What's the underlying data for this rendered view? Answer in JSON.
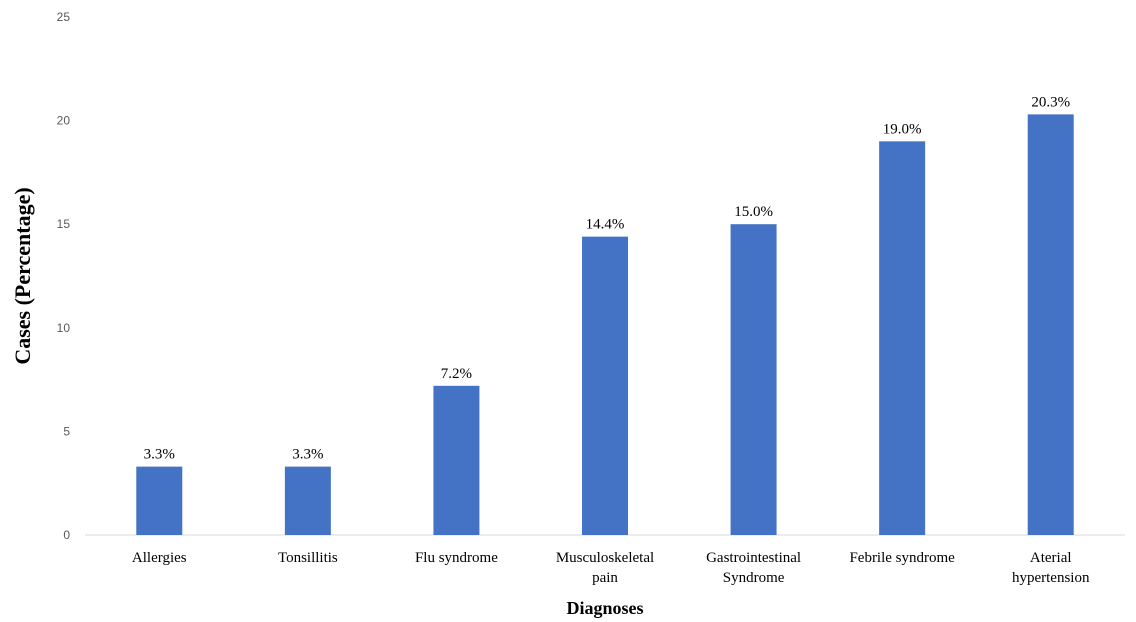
{
  "chart_data": {
    "type": "bar",
    "categories": [
      "Allergies",
      "Tonsillitis",
      "Flu syndrome",
      "Musculoskeletal pain",
      "Gastrointestinal Syndrome",
      "Febrile syndrome",
      "Aterial hypertension"
    ],
    "category_lines": [
      [
        "Allergies"
      ],
      [
        "Tonsillitis"
      ],
      [
        "Flu syndrome"
      ],
      [
        "Musculoskeletal",
        "pain"
      ],
      [
        "Gastrointestinal",
        "Syndrome"
      ],
      [
        "Febrile syndrome"
      ],
      [
        "Aterial",
        "hypertension"
      ]
    ],
    "values": [
      3.3,
      3.3,
      7.2,
      14.4,
      15.0,
      19.0,
      20.3
    ],
    "data_labels": [
      "3.3%",
      "3.3%",
      "7.2%",
      "14.4%",
      "15.0%",
      "19.0%",
      "20.3%"
    ],
    "title": "",
    "xlabel": "Diagnoses",
    "ylabel": "Cases (Percentage)",
    "ylim": [
      0,
      25
    ],
    "yticks": [
      0,
      5,
      10,
      15,
      20,
      25
    ],
    "grid": false,
    "legend": "none",
    "bar_color": "#4472C4",
    "axis_color": "#D9D9D9"
  }
}
